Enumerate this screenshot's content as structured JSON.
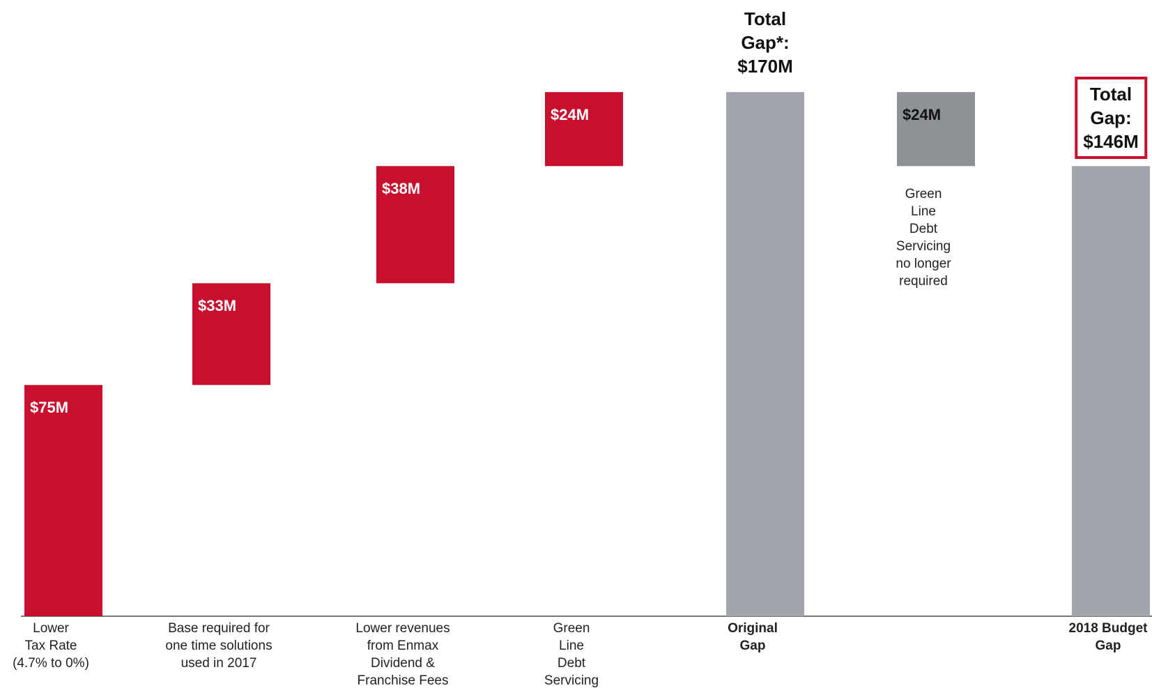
{
  "chart_data": {
    "type": "waterfall",
    "categories": [
      "Lower\nTax  Rate\n(4.7% to 0%)",
      "Base required for\none time solutions\nused in 2017",
      "Lower revenues\nfrom Enmax\nDividend &\nFranchise Fees",
      "Green\nLine\nDebt\nServicing",
      "Original\nGap",
      "Green\nLine\nDebt\nServicing\nno longer\nrequired",
      "2018 Budget\nGap"
    ],
    "kinds": [
      "increase",
      "increase",
      "increase",
      "increase",
      "total",
      "decrease",
      "total"
    ],
    "values": [
      75,
      33,
      38,
      24,
      170,
      24,
      146
    ],
    "value_labels": [
      "$75M",
      "$33M",
      "$38M",
      "$24M",
      "Total\nGap*:\n$170M",
      "$24M",
      "Total\nGap:\n$146M"
    ],
    "colors": {
      "increase": "#c8102e",
      "total": "#a2a5ab",
      "decrease": "#8e9196"
    },
    "boxed": [
      false,
      false,
      false,
      false,
      false,
      false,
      true
    ],
    "box_color": "#c8102e",
    "ylim": [
      0,
      175
    ]
  }
}
